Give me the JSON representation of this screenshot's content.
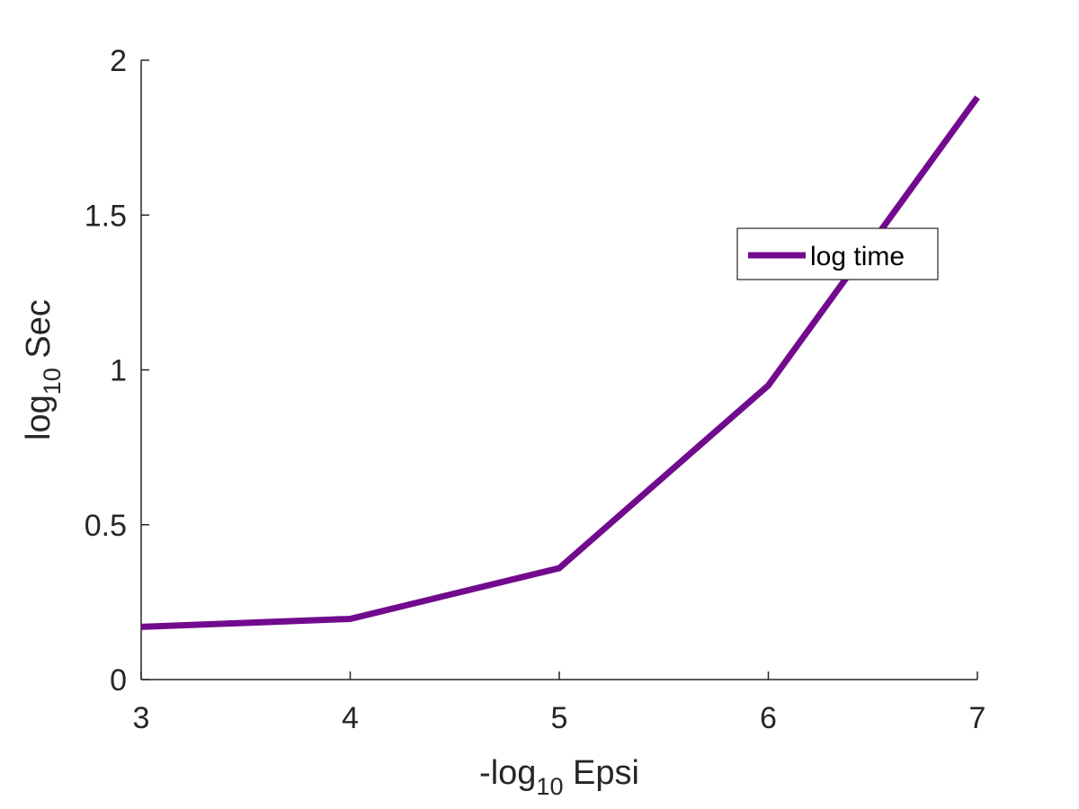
{
  "chart_data": {
    "type": "line",
    "title": "",
    "xlabel": {
      "prefix": "-log",
      "subscript": "10",
      "suffix": " Epsi"
    },
    "ylabel": {
      "prefix": "log",
      "subscript": "10",
      "suffix": " Sec"
    },
    "xlim": [
      3,
      7
    ],
    "ylim": [
      0,
      2
    ],
    "x_ticks": [
      3,
      4,
      5,
      6,
      7
    ],
    "x_tick_labels": [
      "3",
      "4",
      "5",
      "6",
      "7"
    ],
    "y_ticks": [
      0,
      0.5,
      1,
      1.5,
      2
    ],
    "y_tick_labels": [
      "0",
      "0.5",
      "1",
      "1.5",
      "2"
    ],
    "grid": false,
    "legend": {
      "position": "right",
      "entries": [
        "log time"
      ]
    },
    "series": [
      {
        "name": "log time",
        "color": "#720a8e",
        "x": [
          3,
          4,
          5,
          6,
          7
        ],
        "y": [
          0.17,
          0.196,
          0.36,
          0.95,
          1.88
        ]
      }
    ]
  },
  "colors": {
    "axis": "#262626",
    "background": "#ffffff"
  }
}
